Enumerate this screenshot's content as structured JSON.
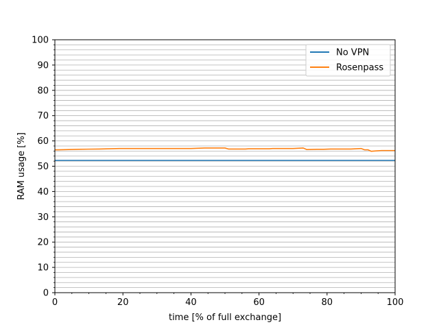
{
  "chart_data": {
    "type": "line",
    "xlabel": "time [% of full exchange]",
    "ylabel": "RAM usage [%]",
    "xlim": [
      0,
      100
    ],
    "ylim": [
      0,
      100
    ],
    "xticks": [
      0,
      20,
      40,
      60,
      80,
      100
    ],
    "yticks": [
      0,
      10,
      20,
      30,
      40,
      50,
      60,
      70,
      80,
      90,
      100
    ],
    "minor_grid_step": 2,
    "grid": "horizontal minor",
    "legend_position": "top-right",
    "series": [
      {
        "name": "No VPN",
        "color": "#1f77b4",
        "x": [
          0,
          100
        ],
        "y": [
          52.3,
          52.3
        ]
      },
      {
        "name": "Rosenpass",
        "color": "#ff7f0e",
        "x": [
          0,
          1,
          7,
          13,
          19,
          27,
          29,
          40,
          42,
          44,
          50,
          51,
          56,
          57,
          63,
          64,
          70,
          73,
          74,
          77,
          79,
          81,
          87,
          90,
          91,
          92,
          93,
          94,
          96,
          100
        ],
        "y": [
          56.5,
          56.5,
          56.7,
          56.8,
          57.0,
          57.0,
          57.0,
          57.0,
          57.1,
          57.2,
          57.2,
          56.8,
          56.8,
          56.9,
          56.9,
          57.0,
          57.0,
          57.2,
          56.6,
          56.7,
          56.7,
          56.8,
          56.8,
          57.0,
          56.5,
          56.5,
          55.9,
          56.0,
          56.2,
          56.2
        ]
      }
    ]
  }
}
